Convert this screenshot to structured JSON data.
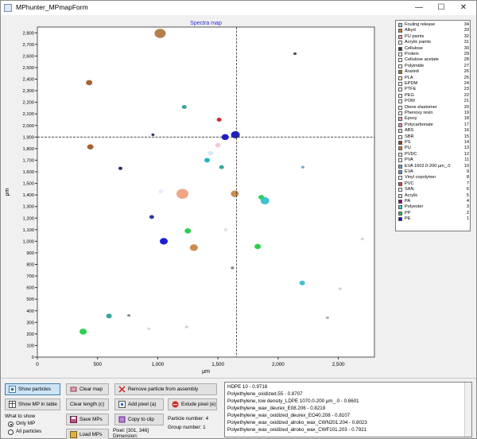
{
  "window": {
    "title": "MPhunter_MPmapForm",
    "controls": {
      "minimize": "—",
      "maximize": "☐",
      "close": "✕"
    }
  },
  "chart_data": {
    "type": "scatter",
    "title": "Spectra map",
    "xlabel": "μm",
    "ylabel": "μm",
    "xlim": [
      0,
      2800
    ],
    "ylim": [
      0,
      2850
    ],
    "x_ticks": [
      0,
      500,
      1000,
      1500,
      2000,
      2500
    ],
    "x_tick_labels": [
      "0",
      "500",
      "1,000",
      "1,500",
      "2,000",
      "2,500"
    ],
    "y_ticks": [
      0,
      100,
      200,
      300,
      400,
      500,
      600,
      700,
      800,
      900,
      1000,
      1100,
      1200,
      1300,
      1400,
      1500,
      1600,
      1700,
      1800,
      1900,
      2000,
      2100,
      2200,
      2300,
      2400,
      2500,
      2600,
      2700,
      2800
    ],
    "y_tick_labels": [
      "0",
      "100",
      "200",
      "300",
      "400",
      "500",
      "600",
      "700",
      "800",
      "900",
      "1,000",
      "1,100",
      "1,200",
      "1,300",
      "1,400",
      "1,500",
      "1,600",
      "1,700",
      "1,800",
      "1,900",
      "2,000",
      "2,100",
      "2,200",
      "2,300",
      "2,400",
      "2,500",
      "2,600",
      "2,700",
      "2,800"
    ],
    "crosshair": {
      "x": 1655,
      "y": 1900
    },
    "grid": false,
    "legend_position": "right",
    "particles": [
      {
        "x": 1020,
        "y": 2795,
        "size": 12,
        "color": "#b07840"
      },
      {
        "x": 430,
        "y": 2370,
        "size": 6,
        "color": "#a05a2c"
      },
      {
        "x": 1220,
        "y": 2160,
        "size": 4,
        "color": "#2aa198"
      },
      {
        "x": 1510,
        "y": 2050,
        "size": 4,
        "color": "#cc2222"
      },
      {
        "x": 2140,
        "y": 2620,
        "size": 2,
        "color": "#444444"
      },
      {
        "x": 1645,
        "y": 1920,
        "size": 9,
        "color": "#1010d0"
      },
      {
        "x": 1560,
        "y": 1900,
        "size": 7,
        "color": "#1010d0"
      },
      {
        "x": 960,
        "y": 1920,
        "size": 2,
        "color": "#223355"
      },
      {
        "x": 1500,
        "y": 1830,
        "size": 5,
        "color": "#f0c8d8"
      },
      {
        "x": 440,
        "y": 1815,
        "size": 6,
        "color": "#a05a2c"
      },
      {
        "x": 1440,
        "y": 1760,
        "size": 5,
        "color": "#d8e8f0"
      },
      {
        "x": 1410,
        "y": 1700,
        "size": 5,
        "color": "#18b0c8"
      },
      {
        "x": 1530,
        "y": 1640,
        "size": 4,
        "color": "#2aa198"
      },
      {
        "x": 690,
        "y": 1630,
        "size": 3,
        "color": "#202060"
      },
      {
        "x": 2205,
        "y": 1640,
        "size": 2,
        "color": "#60b0d0"
      },
      {
        "x": 1205,
        "y": 1410,
        "size": 13,
        "color": "#f0a080"
      },
      {
        "x": 1640,
        "y": 1410,
        "size": 8,
        "color": "#c8864a"
      },
      {
        "x": 1860,
        "y": 1380,
        "size": 5,
        "color": "#22cc44"
      },
      {
        "x": 1890,
        "y": 1350,
        "size": 9,
        "color": "#30c0d0"
      },
      {
        "x": 1025,
        "y": 1430,
        "size": 4,
        "color": "#e8e8ff"
      },
      {
        "x": 950,
        "y": 1210,
        "size": 4,
        "color": "#2a2a90"
      },
      {
        "x": 1250,
        "y": 1090,
        "size": 6,
        "color": "#22cc44"
      },
      {
        "x": 1565,
        "y": 1100,
        "size": 3,
        "color": "#e0e0e0"
      },
      {
        "x": 1050,
        "y": 1000,
        "size": 8,
        "color": "#1010d0"
      },
      {
        "x": 1300,
        "y": 945,
        "size": 8,
        "color": "#c8864a"
      },
      {
        "x": 1830,
        "y": 955,
        "size": 6,
        "color": "#22cc44"
      },
      {
        "x": 2700,
        "y": 1020,
        "size": 2,
        "color": "#d0d0e0"
      },
      {
        "x": 1620,
        "y": 770,
        "size": 2,
        "color": "#777777"
      },
      {
        "x": 2200,
        "y": 640,
        "size": 5,
        "color": "#30c0d0"
      },
      {
        "x": 2515,
        "y": 590,
        "size": 2,
        "color": "#cccccc"
      },
      {
        "x": 595,
        "y": 355,
        "size": 5,
        "color": "#2aa198"
      },
      {
        "x": 760,
        "y": 360,
        "size": 2,
        "color": "#888888"
      },
      {
        "x": 380,
        "y": 220,
        "size": 7,
        "color": "#22cc44"
      },
      {
        "x": 925,
        "y": 245,
        "size": 2,
        "color": "#e0d0f0"
      },
      {
        "x": 1240,
        "y": 260,
        "size": 2,
        "color": "#cccccc"
      },
      {
        "x": 2410,
        "y": 340,
        "size": 2,
        "color": "#aaaaaa"
      }
    ]
  },
  "legend": {
    "items": [
      {
        "name": "Fouling release",
        "count": "34",
        "color": "#a8c8c8"
      },
      {
        "name": "Alkyd",
        "count": "33",
        "color": "#c87d3c"
      },
      {
        "name": "PU paints",
        "count": "32",
        "color": "#f0a0a0"
      },
      {
        "name": "Acrylic paints",
        "count": "31",
        "color": "#ffffff"
      },
      {
        "name": "Cellulose",
        "count": "30",
        "color": "#404040"
      },
      {
        "name": "Protein",
        "count": "29",
        "color": "#ffffff"
      },
      {
        "name": "Cellulose acetate",
        "count": "28",
        "color": "#ffffff"
      },
      {
        "name": "Polyimide",
        "count": "27",
        "color": "#ffffff"
      },
      {
        "name": "Aramid",
        "count": "26",
        "color": "#a07830"
      },
      {
        "name": "PLA",
        "count": "25",
        "color": "#f0f0c0"
      },
      {
        "name": "EPDM",
        "count": "24",
        "color": "#ffffff"
      },
      {
        "name": "PTFE",
        "count": "23",
        "color": "#ffffff"
      },
      {
        "name": "PEG",
        "count": "22",
        "color": "#ffffff"
      },
      {
        "name": "POM",
        "count": "21",
        "color": "#ffffff"
      },
      {
        "name": "Diene elastomer",
        "count": "20",
        "color": "#ffffff"
      },
      {
        "name": "Phenoxy resin",
        "count": "19",
        "color": "#ffffff"
      },
      {
        "name": "Epoxy",
        "count": "18",
        "color": "#f0a0c0"
      },
      {
        "name": "Polycarbonate",
        "count": "17",
        "color": "#e080c0"
      },
      {
        "name": "ABS",
        "count": "16",
        "color": "#e0e0e0"
      },
      {
        "name": "SBR",
        "count": "15",
        "color": "#ffffff"
      },
      {
        "name": "PS",
        "count": "14",
        "color": "#8b4513"
      },
      {
        "name": "PU",
        "count": "13",
        "color": "#d08040"
      },
      {
        "name": "PVDC",
        "count": "12",
        "color": "#e8e8e8"
      },
      {
        "name": "PVA",
        "count": "11",
        "color": "#ffffff"
      },
      {
        "name": "EVA 1602.0-200 μm_.0",
        "count": "10",
        "color": "#60a0d0"
      },
      {
        "name": "EVA",
        "count": "9",
        "color": "#7090d0"
      },
      {
        "name": "Vinyl copolymer",
        "count": "8",
        "color": "#ffffff"
      },
      {
        "name": "PVC",
        "count": "7",
        "color": "#e04040"
      },
      {
        "name": "SAN",
        "count": "6",
        "color": "#ffffff"
      },
      {
        "name": "Acrylic",
        "count": "5",
        "color": "#e0e0e0"
      },
      {
        "name": "PA",
        "count": "4",
        "color": "#800080"
      },
      {
        "name": "Polyester",
        "count": "3",
        "color": "#40d0d0"
      },
      {
        "name": "PP",
        "count": "2",
        "color": "#20c040"
      },
      {
        "name": "PE",
        "count": "1",
        "color": "#1010d0"
      }
    ]
  },
  "controls": {
    "show_particles": "Show particles",
    "clear_map": "Clear map",
    "remove_particle": "Remove particle from assembly",
    "show_mp_table": "Show MP in table",
    "clear_length": "Clear length (c)",
    "add_pixel": "Add pixel (a)",
    "exclude_pixel": "Exlude pixel (e)",
    "save_mps": "Save MPs",
    "copy_clip": "Copy to clip",
    "load_mps": "Load MPs",
    "what_to_show": "What to show",
    "only_mp": "Only MP",
    "all_particles": "All particles",
    "particle_number": "Particle number: 4",
    "group_number": "Group number: 1",
    "pixel": "Pixel: [301, 346]",
    "dimension": "Dimension:"
  },
  "results": [
    "HDPE 10 - 0.9718",
    "Polyethylene_oxidized.55 - 0.8707",
    "Polyethylene, low density_LDPE 1070.0-200 μm_.0 - 0.8601",
    "Polyethylene_wax_deurex_E08.206 - 0.8219",
    "Polyethylene_wax_oxidized_deurex_EO40.208 - 0.8107",
    "Polyethylene_wax_oxidized_alroko_wax_CWN201.204 - 0.8023",
    "Polyethylene_wax_oxidized_alroko_wax_CWF101.203 - 0.7921"
  ]
}
